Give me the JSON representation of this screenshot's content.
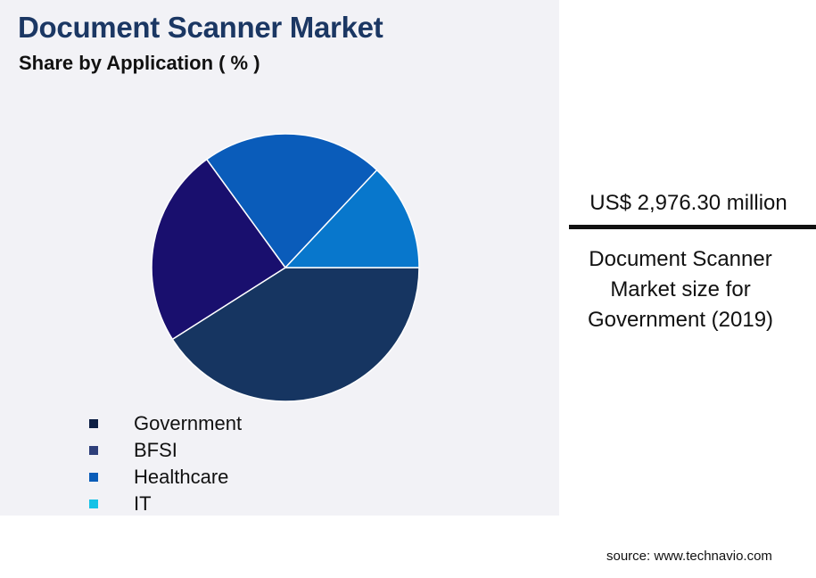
{
  "header": {
    "title": "Document Scanner Market",
    "subtitle": "Share by Application ( % )"
  },
  "legend": [
    {
      "label": "Government",
      "color": "#0d1f44"
    },
    {
      "label": "BFSI",
      "color": "#2e3f7a"
    },
    {
      "label": "Healthcare",
      "color": "#0a5cb8"
    },
    {
      "label": "IT",
      "color": "#14c2e6"
    }
  ],
  "highlight": {
    "value": "US$ 2,976.30 million",
    "description": "Document Scanner Market size for Government (2019)"
  },
  "source": "source: www.technavio.com",
  "chart_data": {
    "type": "pie",
    "categories": [
      "Government",
      "BFSI",
      "Healthcare",
      "IT"
    ],
    "values": [
      41,
      24,
      22,
      13
    ],
    "colors": [
      "#163561",
      "#190f6e",
      "#0a5cba",
      "#0877cc"
    ],
    "start_angle_deg": 0,
    "direction": "clockwise"
  }
}
